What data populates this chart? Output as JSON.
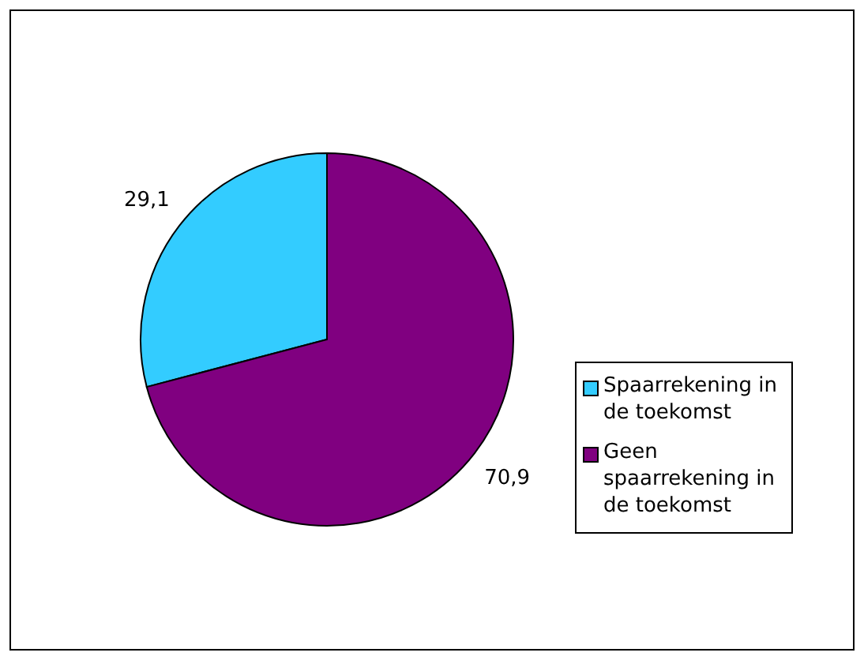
{
  "chart_data": {
    "type": "pie",
    "categories": [
      "Spaarrekening in de toekomst",
      "Geen spaarrekening in de toekomst"
    ],
    "values": [
      29.1,
      70.9
    ],
    "colors": [
      "#33ccff",
      "#800080"
    ],
    "value_labels": [
      "29,1",
      "70,9"
    ],
    "legend": "right"
  }
}
